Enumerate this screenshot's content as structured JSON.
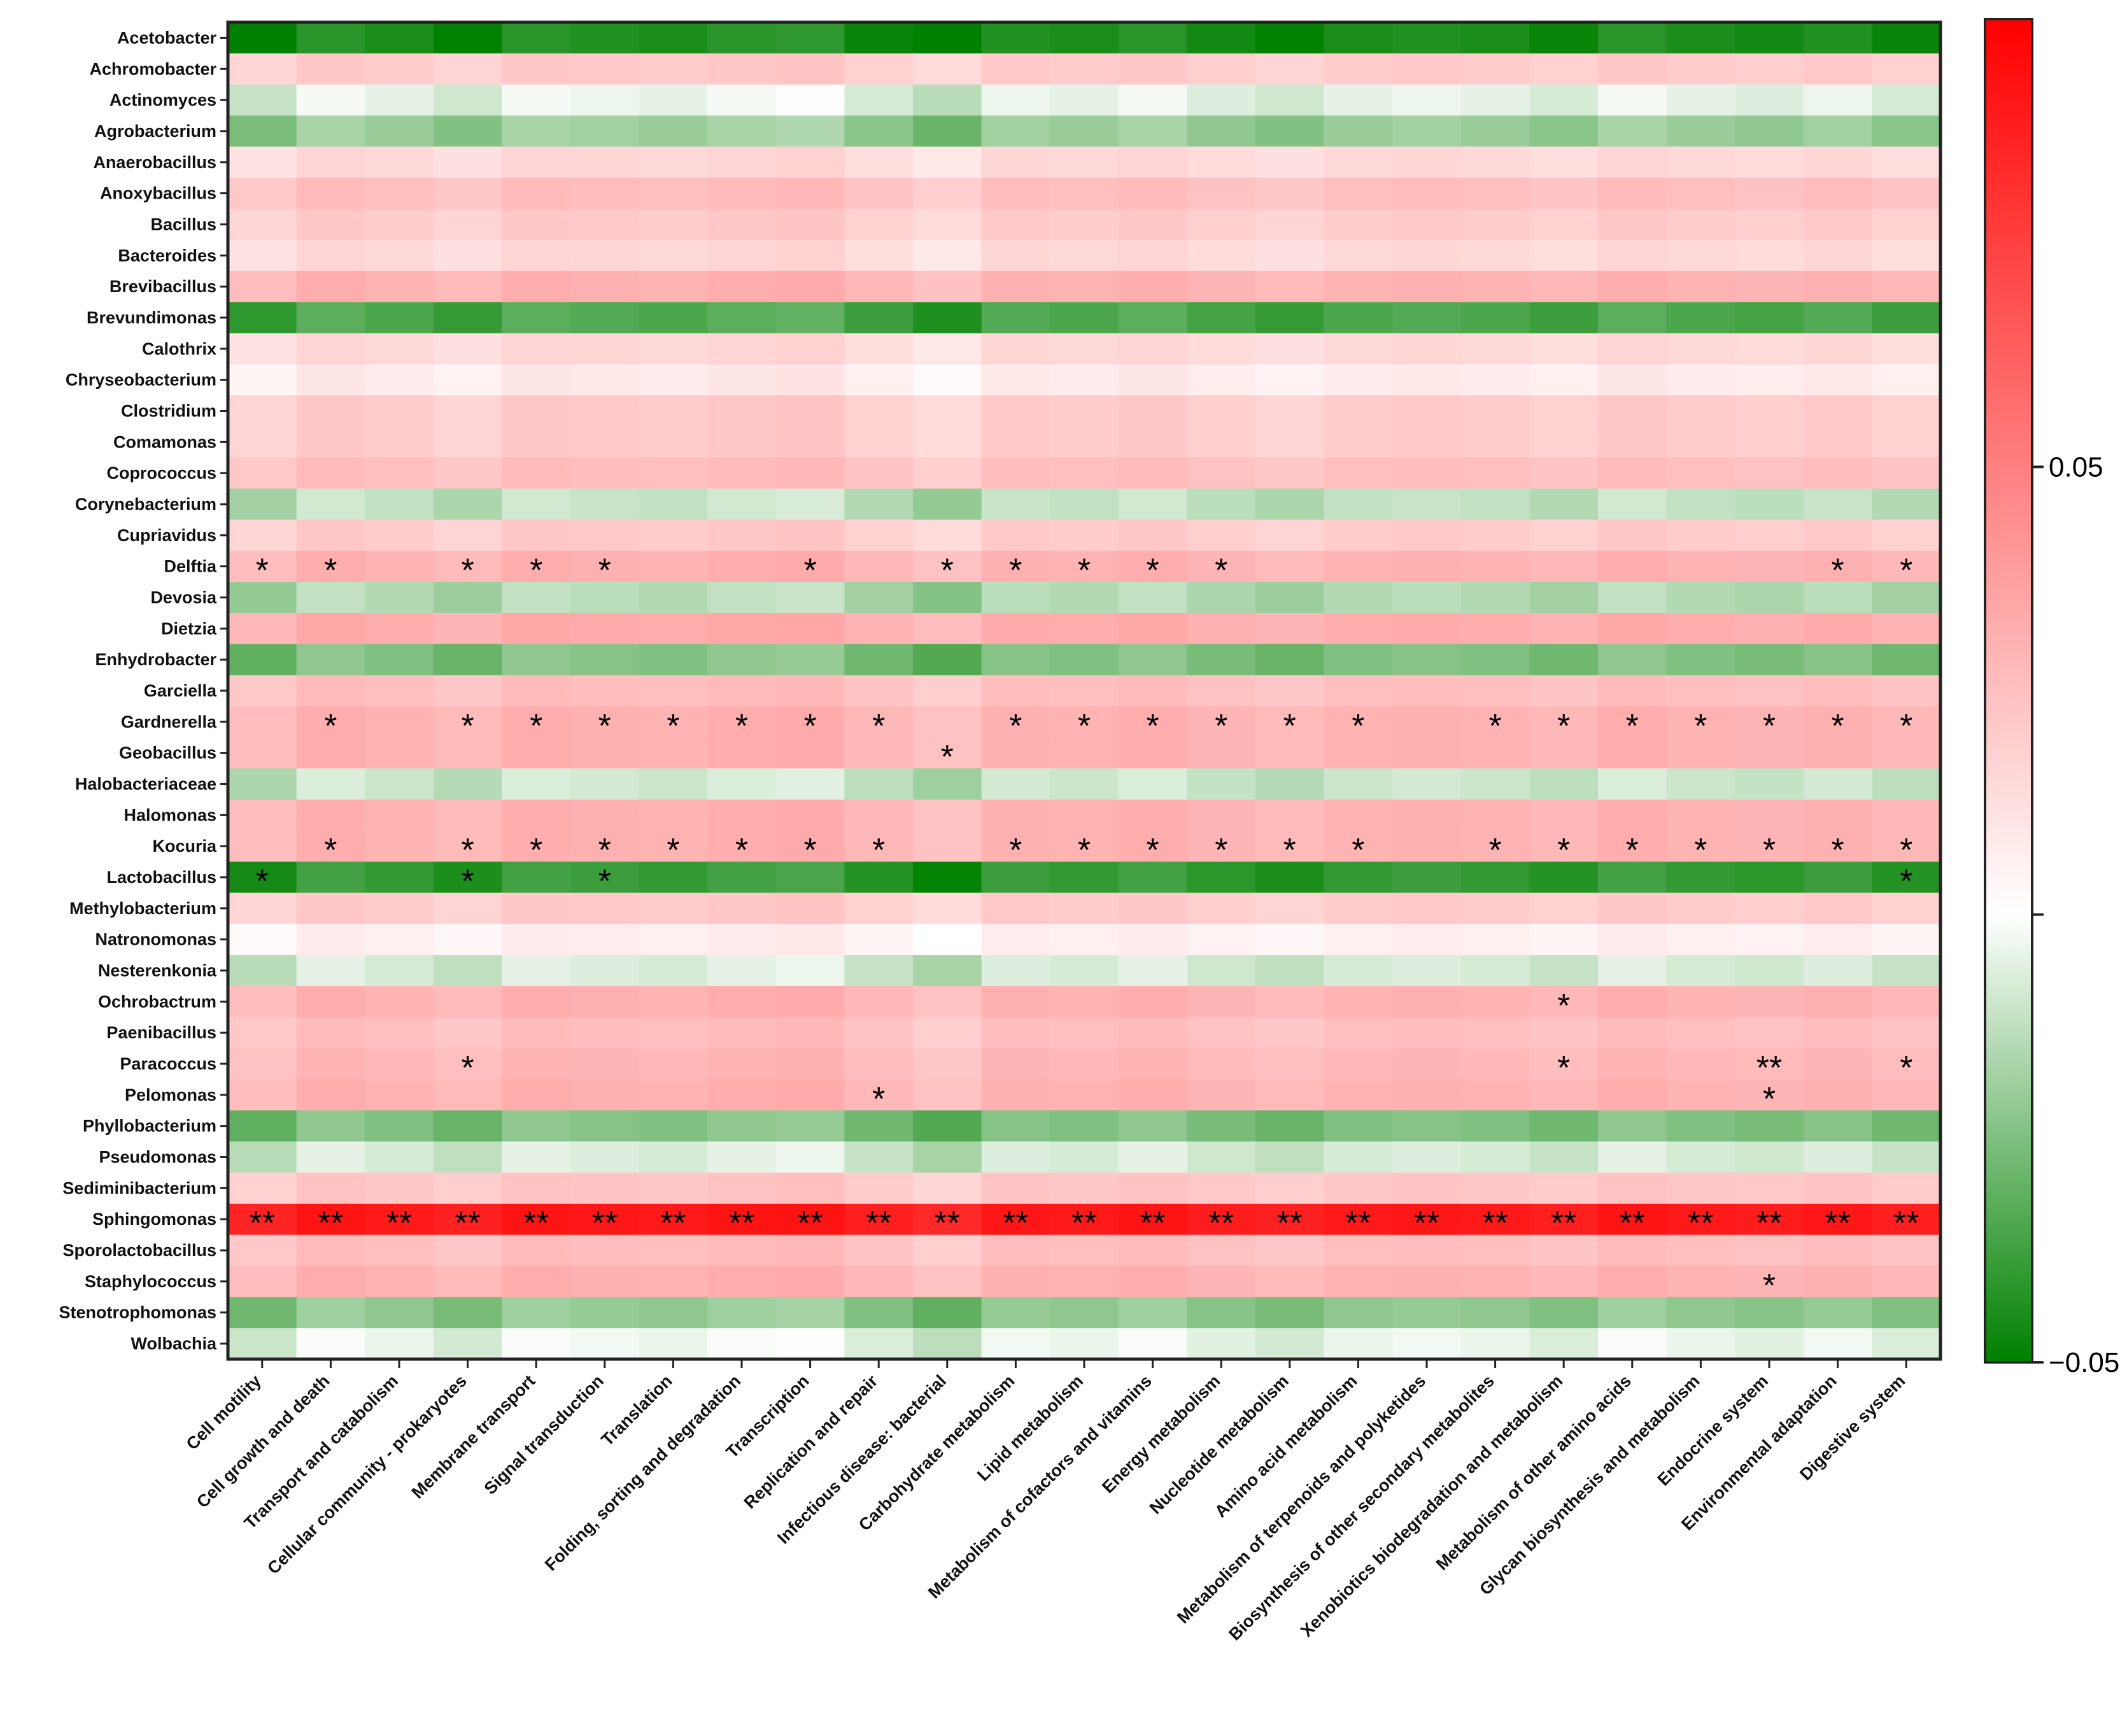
{
  "chart_data": {
    "type": "heatmap",
    "rows": [
      "Acetobacter",
      "Achromobacter",
      "Actinomyces",
      "Agrobacterium",
      "Anaerobacillus",
      "Anoxybacillus",
      "Bacillus",
      "Bacteroides",
      "Brevibacillus",
      "Brevundimonas",
      "Calothrix",
      "Chryseobacterium",
      "Clostridium",
      "Comamonas",
      "Coprococcus",
      "Corynebacterium",
      "Cupriavidus",
      "Delftia",
      "Devosia",
      "Dietzia",
      "Enhydrobacter",
      "Garciella",
      "Gardnerella",
      "Geobacillus",
      "Halobacteriaceae",
      "Halomonas",
      "Kocuria",
      "Lactobacillus",
      "Methylobacterium",
      "Natronomonas",
      "Nesterenkonia",
      "Ochrobactrum",
      "Paenibacillus",
      "Paracoccus",
      "Pelomonas",
      "Phyllobacterium",
      "Pseudomonas",
      "Sediminibacterium",
      "Sphingomonas",
      "Sporolactobacillus",
      "Staphylococcus",
      "Stenotrophomonas",
      "Wolbachia"
    ],
    "columns": [
      "Cell motility",
      "Cell growth and death",
      "Transport and catabolism",
      "Cellular community - prokaryotes",
      "Membrane transport",
      "Signal transduction",
      "Translation",
      "Folding, sorting and degradation",
      "Transcription",
      "Replication and repair",
      "Infectious disease: bacterial",
      "Carbohydrate metabolism",
      "Lipid metabolism",
      "Metabolism of cofactors and vitamins",
      "Energy metabolism",
      "Nucleotide metabolism",
      "Amino acid metabolism",
      "Metabolism of terpenoids and polyketides",
      "Biosynthesis of other secondary metabolites",
      "Xenobiotics biodegradation and metabolism",
      "Metabolism of other amino acids",
      "Glycan biosynthesis and metabolism",
      "Endocrine system",
      "Environmental adaptation",
      "Digestive system"
    ],
    "row_base": [
      -0.045,
      0.02,
      -0.005,
      -0.02,
      0.015,
      0.025,
      0.02,
      0.015,
      0.03,
      -0.035,
      0.015,
      0.008,
      0.02,
      0.02,
      0.025,
      -0.012,
      0.02,
      0.03,
      -0.015,
      0.032,
      -0.025,
      0.025,
      0.03,
      0.03,
      -0.01,
      0.03,
      0.03,
      -0.04,
      0.02,
      0.006,
      -0.008,
      0.03,
      0.025,
      0.028,
      0.03,
      -0.025,
      -0.008,
      0.022,
      0.09,
      0.025,
      0.03,
      -0.022,
      -0.004
    ],
    "column_variation": [
      -0.004,
      0.002,
      0.0,
      -0.003,
      0.002,
      0.001,
      0.0,
      0.002,
      0.003,
      -0.002,
      -0.006,
      0.001,
      0.0,
      0.002,
      -0.001,
      -0.003,
      0.0,
      0.001,
      0.0,
      -0.002,
      0.002,
      0.0,
      -0.001,
      0.001,
      -0.002
    ],
    "significance": {
      "Delftia": {
        "0": "*",
        "1": "*",
        "3": "*",
        "4": "*",
        "5": "*",
        "8": "*",
        "10": "*",
        "11": "*",
        "12": "*",
        "13": "*",
        "14": "*",
        "23": "*",
        "24": "*"
      },
      "Gardnerella": {
        "1": "*",
        "3": "*",
        "4": "*",
        "5": "*",
        "6": "*",
        "7": "*",
        "8": "*",
        "9": "*",
        "11": "*",
        "12": "*",
        "13": "*",
        "14": "*",
        "15": "*",
        "16": "*",
        "18": "*",
        "19": "*",
        "20": "*",
        "21": "*",
        "22": "*",
        "23": "*",
        "24": "*"
      },
      "Geobacillus": {
        "10": "*"
      },
      "Kocuria": {
        "1": "*",
        "3": "*",
        "4": "*",
        "5": "*",
        "6": "*",
        "7": "*",
        "8": "*",
        "9": "*",
        "11": "*",
        "12": "*",
        "13": "*",
        "14": "*",
        "15": "*",
        "16": "*",
        "18": "*",
        "19": "*",
        "20": "*",
        "21": "*",
        "22": "*",
        "23": "*",
        "24": "*"
      },
      "Lactobacillus": {
        "0": "*",
        "3": "*",
        "5": "*",
        "24": "*"
      },
      "Ochrobactrum": {
        "19": "*"
      },
      "Paracoccus": {
        "3": "*",
        "19": "*",
        "22": "**",
        "24": "*"
      },
      "Pelomonas": {
        "9": "*",
        "22": "*"
      },
      "Sphingomonas": {
        "0": "**",
        "1": "**",
        "2": "**",
        "3": "**",
        "4": "**",
        "5": "**",
        "6": "**",
        "7": "**",
        "8": "**",
        "9": "**",
        "10": "**",
        "11": "**",
        "12": "**",
        "13": "**",
        "14": "**",
        "15": "**",
        "16": "**",
        "17": "**",
        "18": "**",
        "19": "**",
        "20": "**",
        "21": "**",
        "22": "**",
        "23": "**",
        "24": "**"
      },
      "Staphylococcus": {
        "22": "*"
      }
    },
    "colorbar": {
      "min": -0.05,
      "max": 0.1,
      "ticks": [
        {
          "value": 0.05,
          "label": "0.05"
        },
        {
          "value": 0.0,
          "label": ""
        },
        {
          "value": -0.05,
          "label": "−0.05"
        }
      ],
      "low_color": "#008000",
      "mid_color": "#ffffff",
      "high_color": "#ff0000",
      "mid_value": 0.0
    },
    "xlabel": "",
    "ylabel": "",
    "title": ""
  }
}
